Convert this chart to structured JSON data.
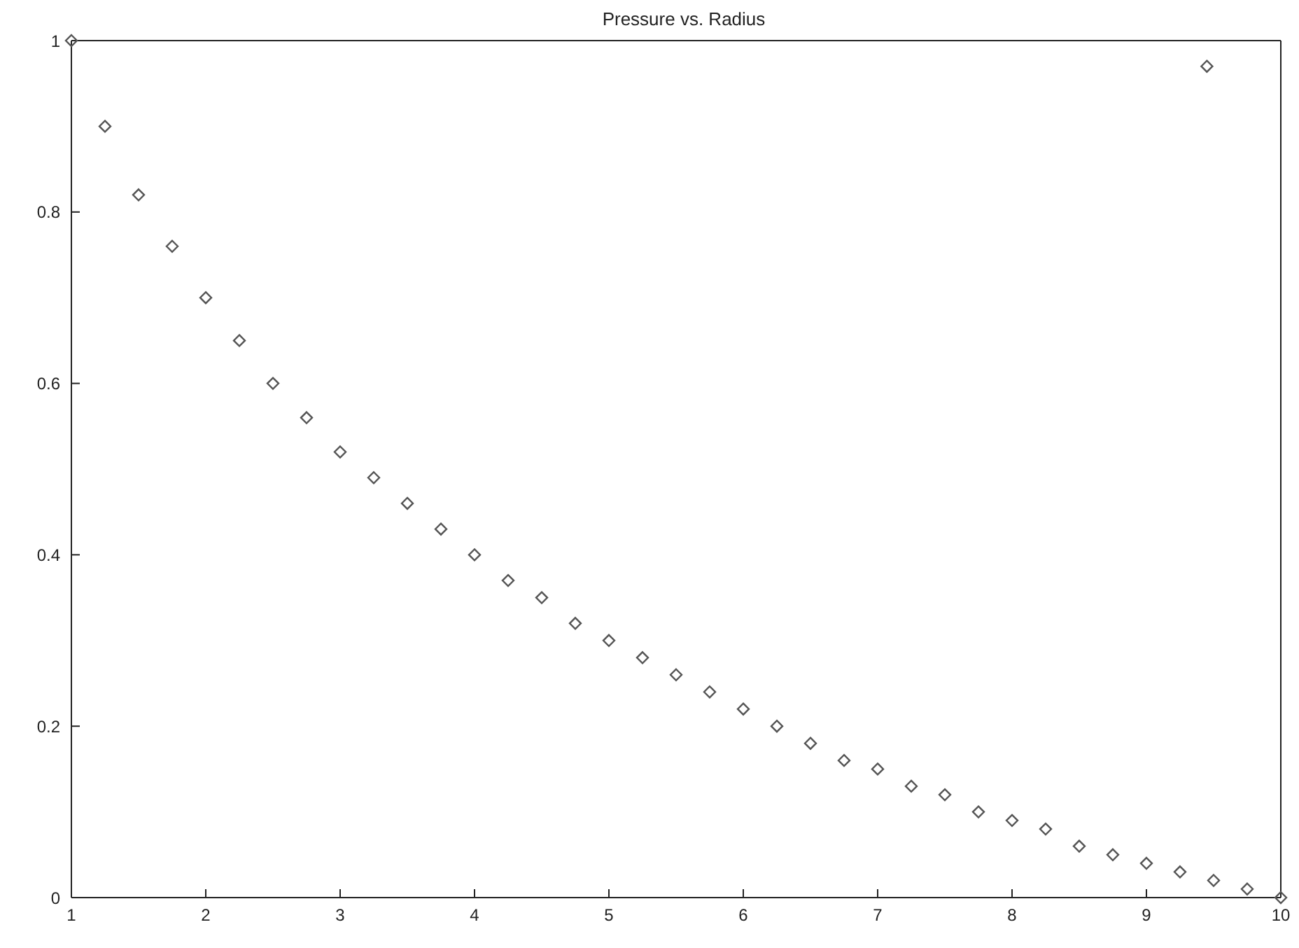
{
  "chart_data": {
    "type": "scatter",
    "title": "Pressure vs. Radius",
    "marker": "diamond",
    "series": [
      {
        "color": "#555555",
        "x": [
          1,
          1.25,
          1.5,
          1.75,
          2,
          2.25,
          2.5,
          2.75,
          3,
          3.25,
          3.5,
          3.75,
          4,
          4.25,
          4.5,
          4.75,
          5,
          5.25,
          5.5,
          5.75,
          6,
          6.25,
          6.5,
          6.75,
          7,
          7.25,
          7.5,
          7.75,
          8,
          8.25,
          8.5,
          8.75,
          9,
          9.25,
          9.5,
          9.75,
          10
        ],
        "values": [
          1,
          0.9,
          0.82,
          0.76,
          0.7,
          0.65,
          0.6,
          0.56,
          0.52,
          0.49,
          0.46,
          0.43,
          0.4,
          0.37,
          0.35,
          0.32,
          0.3,
          0.28,
          0.26,
          0.24,
          0.22,
          0.2,
          0.18,
          0.16,
          0.15,
          0.13,
          0.12,
          0.1,
          0.09,
          0.08,
          0.06,
          0.05,
          0.04,
          0.03,
          0.02,
          0.01,
          0
        ]
      },
      {
        "color": "#555555",
        "x": [
          9.45
        ],
        "values": [
          0.97
        ]
      }
    ],
    "xlim": [
      1,
      10
    ],
    "xticks": [
      1,
      2,
      3,
      4,
      5,
      6,
      7,
      8,
      9,
      10
    ],
    "ylim": [
      0,
      1
    ],
    "yticks": [
      0,
      0.2,
      0.4,
      0.6,
      0.8,
      1
    ]
  }
}
